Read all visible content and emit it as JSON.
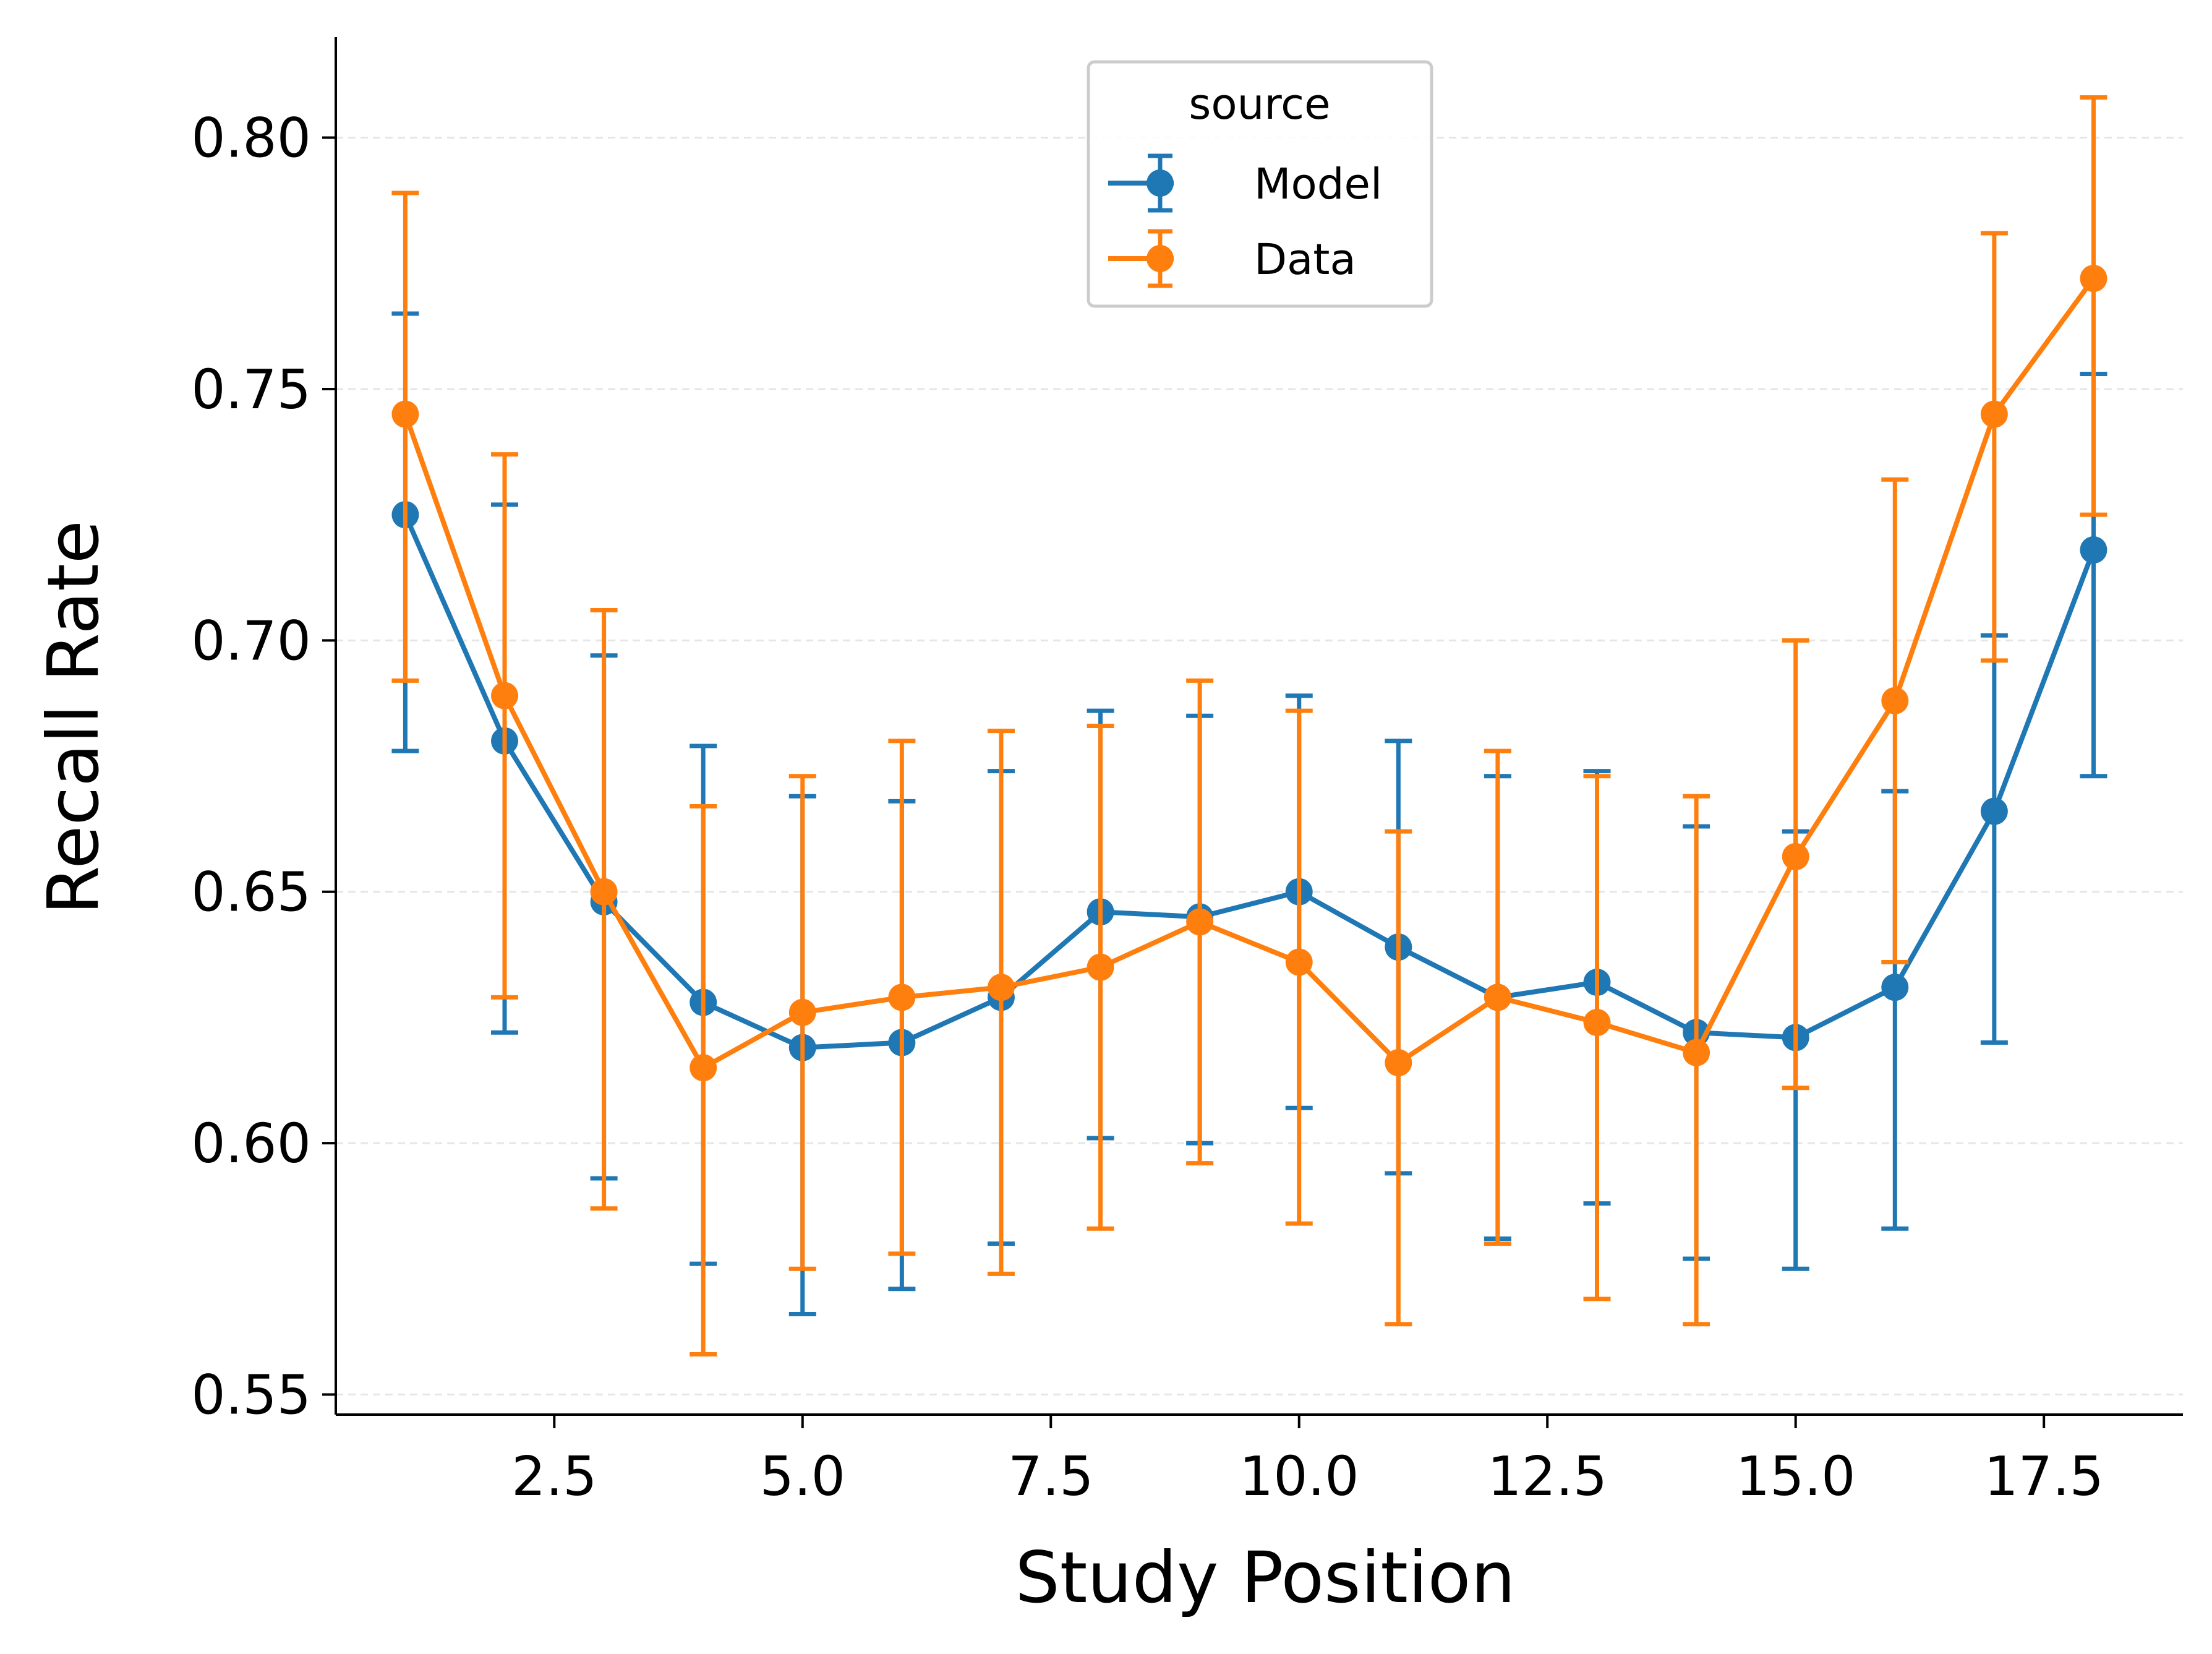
{
  "chart_data": {
    "type": "line",
    "xlabel": "Study Position",
    "ylabel": "Recall Rate",
    "xlim": [
      0.3,
      18.9
    ],
    "ylim": [
      0.546,
      0.82
    ],
    "xticks": [
      2.5,
      5.0,
      7.5,
      10.0,
      12.5,
      15.0,
      17.5
    ],
    "xtick_labels": [
      "2.5",
      "5.0",
      "7.5",
      "10.0",
      "12.5",
      "15.0",
      "17.5"
    ],
    "yticks": [
      0.55,
      0.6,
      0.65,
      0.7,
      0.75,
      0.8
    ],
    "ytick_labels": [
      "0.55",
      "0.60",
      "0.65",
      "0.70",
      "0.75",
      "0.80"
    ],
    "grid": "horizontal dashed",
    "legend": {
      "title": "source",
      "placement": "top-center"
    },
    "x": [
      1,
      2,
      3,
      4,
      5,
      6,
      7,
      8,
      9,
      10,
      11,
      12,
      13,
      14,
      15,
      16,
      17,
      18
    ],
    "series": [
      {
        "name": "Model",
        "color": "#1f77b4",
        "values": [
          0.725,
          0.68,
          0.648,
          0.628,
          0.619,
          0.62,
          0.629,
          0.646,
          0.645,
          0.65,
          0.639,
          0.629,
          0.632,
          0.622,
          0.621,
          0.631,
          0.666,
          0.718
        ],
        "err_low": [
          0.678,
          0.622,
          0.593,
          0.576,
          0.566,
          0.571,
          0.58,
          0.601,
          0.6,
          0.607,
          0.594,
          0.581,
          0.588,
          0.577,
          0.575,
          0.583,
          0.62,
          0.673
        ],
        "err_high": [
          0.765,
          0.727,
          0.697,
          0.679,
          0.669,
          0.668,
          0.674,
          0.686,
          0.685,
          0.689,
          0.68,
          0.673,
          0.674,
          0.663,
          0.662,
          0.67,
          0.701,
          0.753
        ]
      },
      {
        "name": "Data",
        "color": "#ff7f0e",
        "values": [
          0.745,
          0.689,
          0.65,
          0.615,
          0.626,
          0.629,
          0.631,
          0.635,
          0.644,
          0.636,
          0.616,
          0.629,
          0.624,
          0.618,
          0.657,
          0.688,
          0.745,
          0.772
        ],
        "err_low": [
          0.692,
          0.629,
          0.587,
          0.558,
          0.575,
          0.578,
          0.574,
          0.583,
          0.596,
          0.584,
          0.564,
          0.58,
          0.569,
          0.564,
          0.611,
          0.636,
          0.696,
          0.725
        ],
        "err_high": [
          0.789,
          0.737,
          0.706,
          0.667,
          0.673,
          0.68,
          0.682,
          0.683,
          0.692,
          0.686,
          0.662,
          0.678,
          0.673,
          0.669,
          0.7,
          0.732,
          0.781,
          0.808
        ]
      }
    ]
  }
}
